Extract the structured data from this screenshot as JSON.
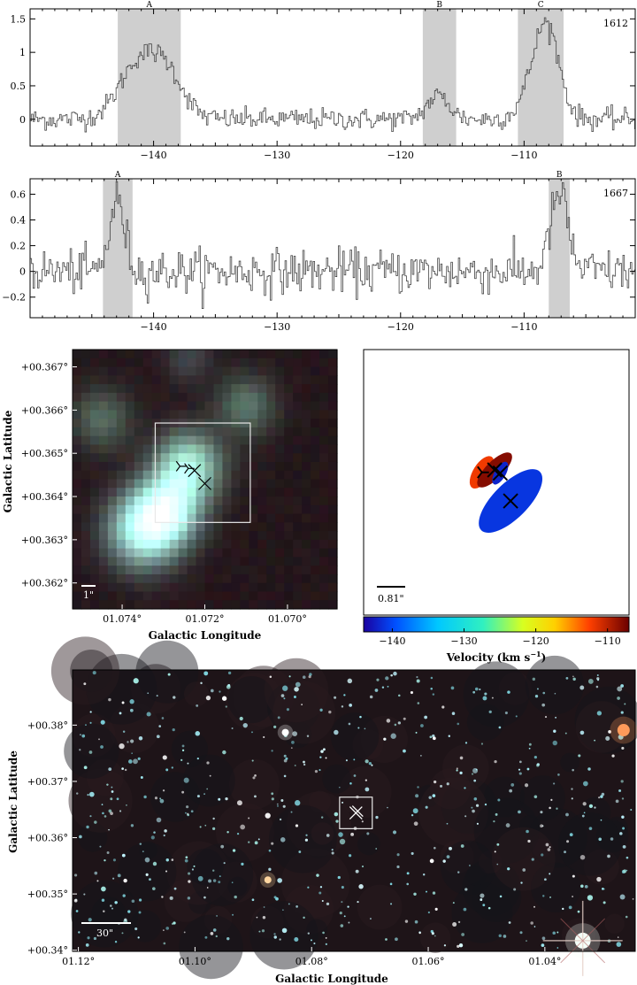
{
  "chart_data": [
    {
      "type": "line",
      "panel": "spectrum-1612",
      "label": "1612",
      "xlim": [
        -150,
        -101
      ],
      "ylim": [
        -0.4,
        1.65
      ],
      "xticks": [
        -140,
        -130,
        -120,
        -110
      ],
      "yticks": [
        0,
        0.5,
        1,
        1.5
      ],
      "xtick_labels": [
        "−140",
        "−130",
        "−120",
        "−110"
      ],
      "ytick_labels": [
        "0",
        "0.5",
        "1",
        "1.5"
      ],
      "bands": [
        {
          "name": "A",
          "x0": -142.9,
          "x1": -137.8
        },
        {
          "name": "B",
          "x0": -118.2,
          "x1": -115.5
        },
        {
          "name": "C",
          "x0": -110.5,
          "x1": -106.8
        }
      ],
      "peaks": [
        {
          "center": -141.2,
          "width": 1.6,
          "amp": 0.85
        },
        {
          "center": -138.8,
          "width": 1.3,
          "amp": 0.55
        },
        {
          "center": -117.0,
          "width": 0.9,
          "amp": 0.35
        },
        {
          "center": -108.2,
          "width": 1.0,
          "amp": 1.35
        },
        {
          "center": -109.6,
          "width": 1.0,
          "amp": 0.25
        }
      ],
      "noise": 0.08
    },
    {
      "type": "line",
      "panel": "spectrum-1667",
      "label": "1667",
      "xlim": [
        -150,
        -101
      ],
      "ylim": [
        -0.36,
        0.72
      ],
      "xticks": [
        -140,
        -130,
        -120,
        -110
      ],
      "yticks": [
        -0.2,
        0,
        0.2,
        0.4,
        0.6
      ],
      "xtick_labels": [
        "−140",
        "−130",
        "−120",
        "−110"
      ],
      "ytick_labels": [
        "−0.2",
        "0",
        "0.2",
        "0.4",
        "0.6"
      ],
      "bands": [
        {
          "name": "A",
          "x0": -144.1,
          "x1": -141.7
        },
        {
          "name": "B",
          "x0": -108.0,
          "x1": -106.3
        }
      ],
      "peaks": [
        {
          "center": -143.0,
          "width": 0.6,
          "amp": 0.55
        },
        {
          "center": -107.2,
          "width": 0.7,
          "amp": 0.6
        }
      ],
      "noise": 0.085
    },
    {
      "type": "image",
      "panel": "zoom-image",
      "xlabel": "Galactic Longitude",
      "ylabel": "Galactic Latitude",
      "xlim": [
        1.0752,
        1.0688
      ],
      "ylim": [
        0.3614,
        0.3674
      ],
      "xticks": [
        1.074,
        1.072,
        1.07
      ],
      "yticks": [
        0.362,
        0.363,
        0.364,
        0.365,
        0.366,
        0.367
      ],
      "xtick_labels": [
        "01.074°",
        "01.072°",
        "01.070°"
      ],
      "ytick_labels": [
        "+00.362°",
        "+00.363°",
        "+00.364°",
        "+00.365°",
        "+00.366°",
        "+00.367°"
      ],
      "scalebar": "1\"",
      "box": {
        "l0": 1.0732,
        "l1": 1.0709,
        "b0": 0.3634,
        "b1": 0.3657
      },
      "sources": [
        {
          "l": 1.0724,
          "b": 0.3647,
          "amp": 0.95,
          "sigma": 0.00055,
          "color": "#8fe6c8"
        },
        {
          "l": 1.0729,
          "b": 0.3637,
          "amp": 1.0,
          "sigma": 0.00055,
          "color": "#8fe6d8"
        },
        {
          "l": 1.0735,
          "b": 0.3632,
          "amp": 1.0,
          "sigma": 0.0006,
          "color": "#8fe6d8"
        },
        {
          "l": 1.071,
          "b": 0.3661,
          "amp": 0.5,
          "sigma": 0.0005,
          "color": "#6fbf9f"
        },
        {
          "l": 1.0745,
          "b": 0.3658,
          "amp": 0.45,
          "sigma": 0.0005,
          "color": "#6fbf9f"
        },
        {
          "l": 1.0724,
          "b": 0.3672,
          "amp": 0.3,
          "sigma": 0.0004,
          "color": "#5f9f9f"
        }
      ],
      "markers": [
        {
          "l": 1.0726,
          "b": 0.3647,
          "symbol": "tri"
        },
        {
          "l": 1.0724,
          "b": 0.36465,
          "symbol": "tri"
        },
        {
          "l": 1.07225,
          "b": 0.3646,
          "symbol": "x"
        },
        {
          "l": 1.072,
          "b": 0.3643,
          "symbol": "x"
        }
      ]
    },
    {
      "type": "scatter",
      "panel": "velocity-ellipses",
      "scalebar": "0.81\"",
      "colorbar": {
        "label": "Velocity (km s",
        "label_sup": "−1",
        "label_end": ")",
        "range": [
          -144,
          -107
        ],
        "ticks": [
          -140,
          -130,
          -120,
          -110
        ],
        "tick_labels": [
          "−140",
          "−130",
          "−120",
          "−110"
        ]
      },
      "ellipses": [
        {
          "x": -0.35,
          "y": 0.35,
          "velocity": -112,
          "rx": 0.55,
          "ry": 1.15,
          "angle": 32,
          "symbol": "tri"
        },
        {
          "x": 0.45,
          "y": 0.5,
          "velocity": -108,
          "rx": 0.55,
          "ry": 1.45,
          "angle": 45,
          "symbol": "x"
        },
        {
          "x": 0.8,
          "y": 0.3,
          "velocity": -142,
          "rx": 0.35,
          "ry": 0.8,
          "angle": 30,
          "symbol": "x"
        },
        {
          "x": 1.45,
          "y": -1.45,
          "velocity": -141,
          "rx": 1.1,
          "ry": 2.6,
          "angle": 45,
          "symbol": "x"
        }
      ]
    },
    {
      "type": "image",
      "panel": "wide-field",
      "xlabel": "Galactic Longitude",
      "ylabel": "Galactic Latitude",
      "xlim": [
        1.121,
        1.0245
      ],
      "ylim": [
        0.3398,
        0.3898
      ],
      "xticks": [
        1.12,
        1.1,
        1.08,
        1.06,
        1.04
      ],
      "yticks": [
        0.34,
        0.35,
        0.36,
        0.37,
        0.38
      ],
      "xtick_labels": [
        "01.12°",
        "01.10°",
        "01.08°",
        "01.06°",
        "01.04°"
      ],
      "ytick_labels": [
        "+00.34°",
        "+00.35°",
        "+00.36°",
        "+00.37°",
        "+00.38°"
      ],
      "scalebar": "30\"",
      "box": {
        "l0": 1.0752,
        "l1": 1.0696,
        "b0": 0.3616,
        "b1": 0.3672
      },
      "bright_stars": [
        {
          "l": 1.0335,
          "b": 0.3417,
          "color": "#f4fff8",
          "r": 9
        },
        {
          "l": 1.0265,
          "b": 0.3791,
          "color": "#ff9a5a",
          "r": 7
        },
        {
          "l": 1.0845,
          "b": 0.3787,
          "color": "#ffffff",
          "r": 4
        },
        {
          "l": 1.0875,
          "b": 0.3525,
          "color": "#ffd6a0",
          "r": 4
        }
      ]
    }
  ]
}
